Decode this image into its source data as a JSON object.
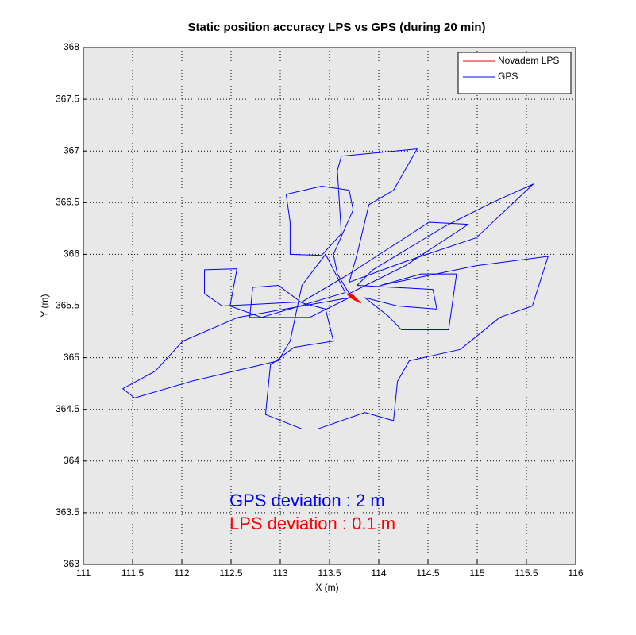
{
  "chart_data": {
    "type": "line",
    "title": "Static position accuracy  LPS vs GPS (during 20 min)",
    "x_label": "X (m)",
    "y_label": "Y (m)",
    "xlim": [
      111,
      116
    ],
    "xticks": [
      111,
      111.5,
      112,
      112.5,
      113,
      113.5,
      114,
      114.5,
      115,
      115.5,
      116
    ],
    "ylim": [
      363,
      368
    ],
    "yticks": [
      363,
      363.5,
      364,
      364.5,
      365,
      365.5,
      366,
      366.5,
      367,
      367.5,
      368
    ],
    "grid": true,
    "legend": "upper right",
    "series": [
      {
        "name": "Novadem LPS",
        "color": "#ff0000",
        "x": [
          113.68,
          113.72,
          113.76,
          113.8,
          113.74,
          113.7,
          113.78,
          113.72,
          113.82
        ],
        "values": [
          365.62,
          365.58,
          365.56,
          365.54,
          365.6,
          365.61,
          365.55,
          365.59,
          365.53
        ]
      },
      {
        "name": "GPS",
        "color": "#0000ff",
        "x": [
          113.7,
          113.58,
          113.54,
          113.74,
          113.7,
          113.42,
          113.06,
          113.1,
          113.1,
          113.42,
          113.62,
          113.58,
          113.62,
          114.39,
          114.15,
          113.9,
          113.78,
          113.7,
          114.27,
          114.99,
          115.57,
          115.15,
          114.67,
          113.94,
          113.78,
          114.55,
          114.59,
          114.19,
          113.86,
          114.1,
          114.23,
          114.71,
          114.79,
          114.43,
          114.02,
          114.99,
          115.72,
          115.56,
          115.23,
          114.83,
          114.31,
          114.19,
          114.15,
          113.86,
          113.38,
          113.22,
          112.85,
          112.9,
          113.14,
          113.54,
          113.46,
          113.22,
          112.98,
          112.72,
          112.69,
          113.3,
          113.7,
          112.57,
          112.01,
          111.73,
          111.4,
          111.52,
          112.09,
          112.98,
          113.1,
          113.22,
          113.46,
          113.66,
          112.81,
          112.49,
          112.56,
          112.23,
          112.23,
          112.41,
          113.22,
          113.7,
          114.51,
          114.91,
          114.27,
          113.7
        ],
        "values": [
          365.62,
          365.81,
          366.0,
          366.43,
          366.62,
          366.66,
          366.58,
          366.31,
          366.0,
          365.99,
          366.2,
          366.81,
          366.95,
          367.02,
          366.62,
          366.48,
          366.0,
          365.73,
          365.93,
          366.16,
          366.68,
          366.5,
          366.27,
          365.85,
          365.7,
          365.66,
          365.47,
          365.5,
          365.58,
          365.4,
          365.27,
          365.27,
          365.81,
          365.81,
          365.7,
          365.89,
          365.98,
          365.5,
          365.39,
          365.08,
          364.97,
          364.77,
          364.39,
          364.47,
          364.31,
          364.31,
          364.45,
          364.93,
          365.1,
          365.16,
          365.47,
          365.53,
          365.7,
          365.68,
          365.39,
          365.39,
          365.58,
          365.39,
          365.16,
          364.87,
          364.7,
          364.61,
          364.77,
          364.97,
          365.16,
          365.7,
          366.0,
          365.63,
          365.39,
          365.5,
          365.86,
          365.85,
          365.62,
          365.5,
          365.54,
          365.81,
          366.31,
          366.29,
          365.89,
          365.62
        ]
      }
    ],
    "annotations": [
      {
        "text": "GPS deviation : 2 m",
        "color": "#0000ff"
      },
      {
        "text": "LPS deviation  : 0.1 m",
        "color": "#ff0000"
      }
    ]
  }
}
